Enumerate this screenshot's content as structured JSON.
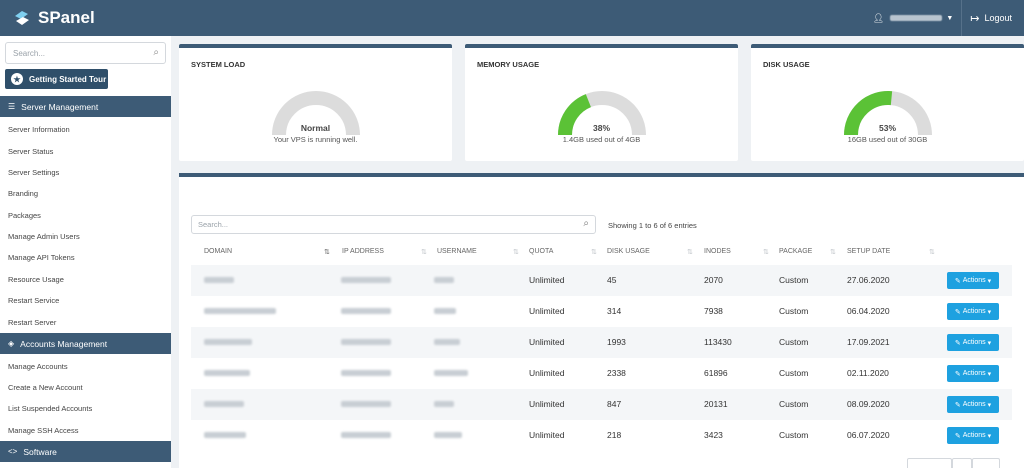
{
  "app": {
    "title": "SPanel"
  },
  "header": {
    "logout_label": "Logout",
    "user_icon": "user-icon",
    "logout_icon": "logout-icon"
  },
  "sidebar": {
    "search_placeholder": "Search...",
    "tour_label": "Getting Started Tour",
    "sections": [
      {
        "label": "Server Management",
        "icon": "server-icon"
      },
      {
        "label": "Accounts Management",
        "icon": "layers-icon"
      },
      {
        "label": "Software",
        "icon": "code-icon"
      }
    ],
    "server_items": [
      "Server Information",
      "Server Status",
      "Server Settings",
      "Branding",
      "Packages",
      "Manage Admin Users",
      "Manage API Tokens",
      "Resource Usage",
      "Restart Service",
      "Restart Server"
    ],
    "account_items": [
      "Manage Accounts",
      "Create a New Account",
      "List Suspended Accounts",
      "Manage SSH Access"
    ]
  },
  "cards": {
    "system_load": {
      "title": "SYSTEM LOAD",
      "value": "Normal",
      "sub": "Your VPS is running well."
    },
    "memory": {
      "title": "MEMORY USAGE",
      "value": "38%",
      "sub": "1.4GB used out of 4GB",
      "percent": 38
    },
    "disk": {
      "title": "DISK USAGE",
      "value": "53%",
      "sub": "16GB used out of 30GB",
      "percent": 53
    }
  },
  "colors": {
    "accent": "#3d5b76",
    "action": "#1ea1e0",
    "gauge_green": "#5bc236",
    "gauge_track": "#dcdcdc"
  },
  "table": {
    "search_placeholder": "Search...",
    "info": "Showing 1 to 6 of 6 entries",
    "columns": [
      "DOMAIN",
      "IP ADDRESS",
      "USERNAME",
      "QUOTA",
      "DISK USAGE",
      "INODES",
      "PACKAGE",
      "SETUP DATE"
    ],
    "action_label": "Actions",
    "rows": [
      {
        "quota": "Unlimited",
        "disk": "45",
        "inodes": "2070",
        "package": "Custom",
        "date": "27.06.2020"
      },
      {
        "quota": "Unlimited",
        "disk": "314",
        "inodes": "7938",
        "package": "Custom",
        "date": "06.04.2020"
      },
      {
        "quota": "Unlimited",
        "disk": "1993",
        "inodes": "113430",
        "package": "Custom",
        "date": "17.09.2021"
      },
      {
        "quota": "Unlimited",
        "disk": "2338",
        "inodes": "61896",
        "package": "Custom",
        "date": "02.11.2020"
      },
      {
        "quota": "Unlimited",
        "disk": "847",
        "inodes": "20131",
        "package": "Custom",
        "date": "08.09.2020"
      },
      {
        "quota": "Unlimited",
        "disk": "218",
        "inodes": "3423",
        "package": "Custom",
        "date": "06.07.2020"
      }
    ]
  }
}
